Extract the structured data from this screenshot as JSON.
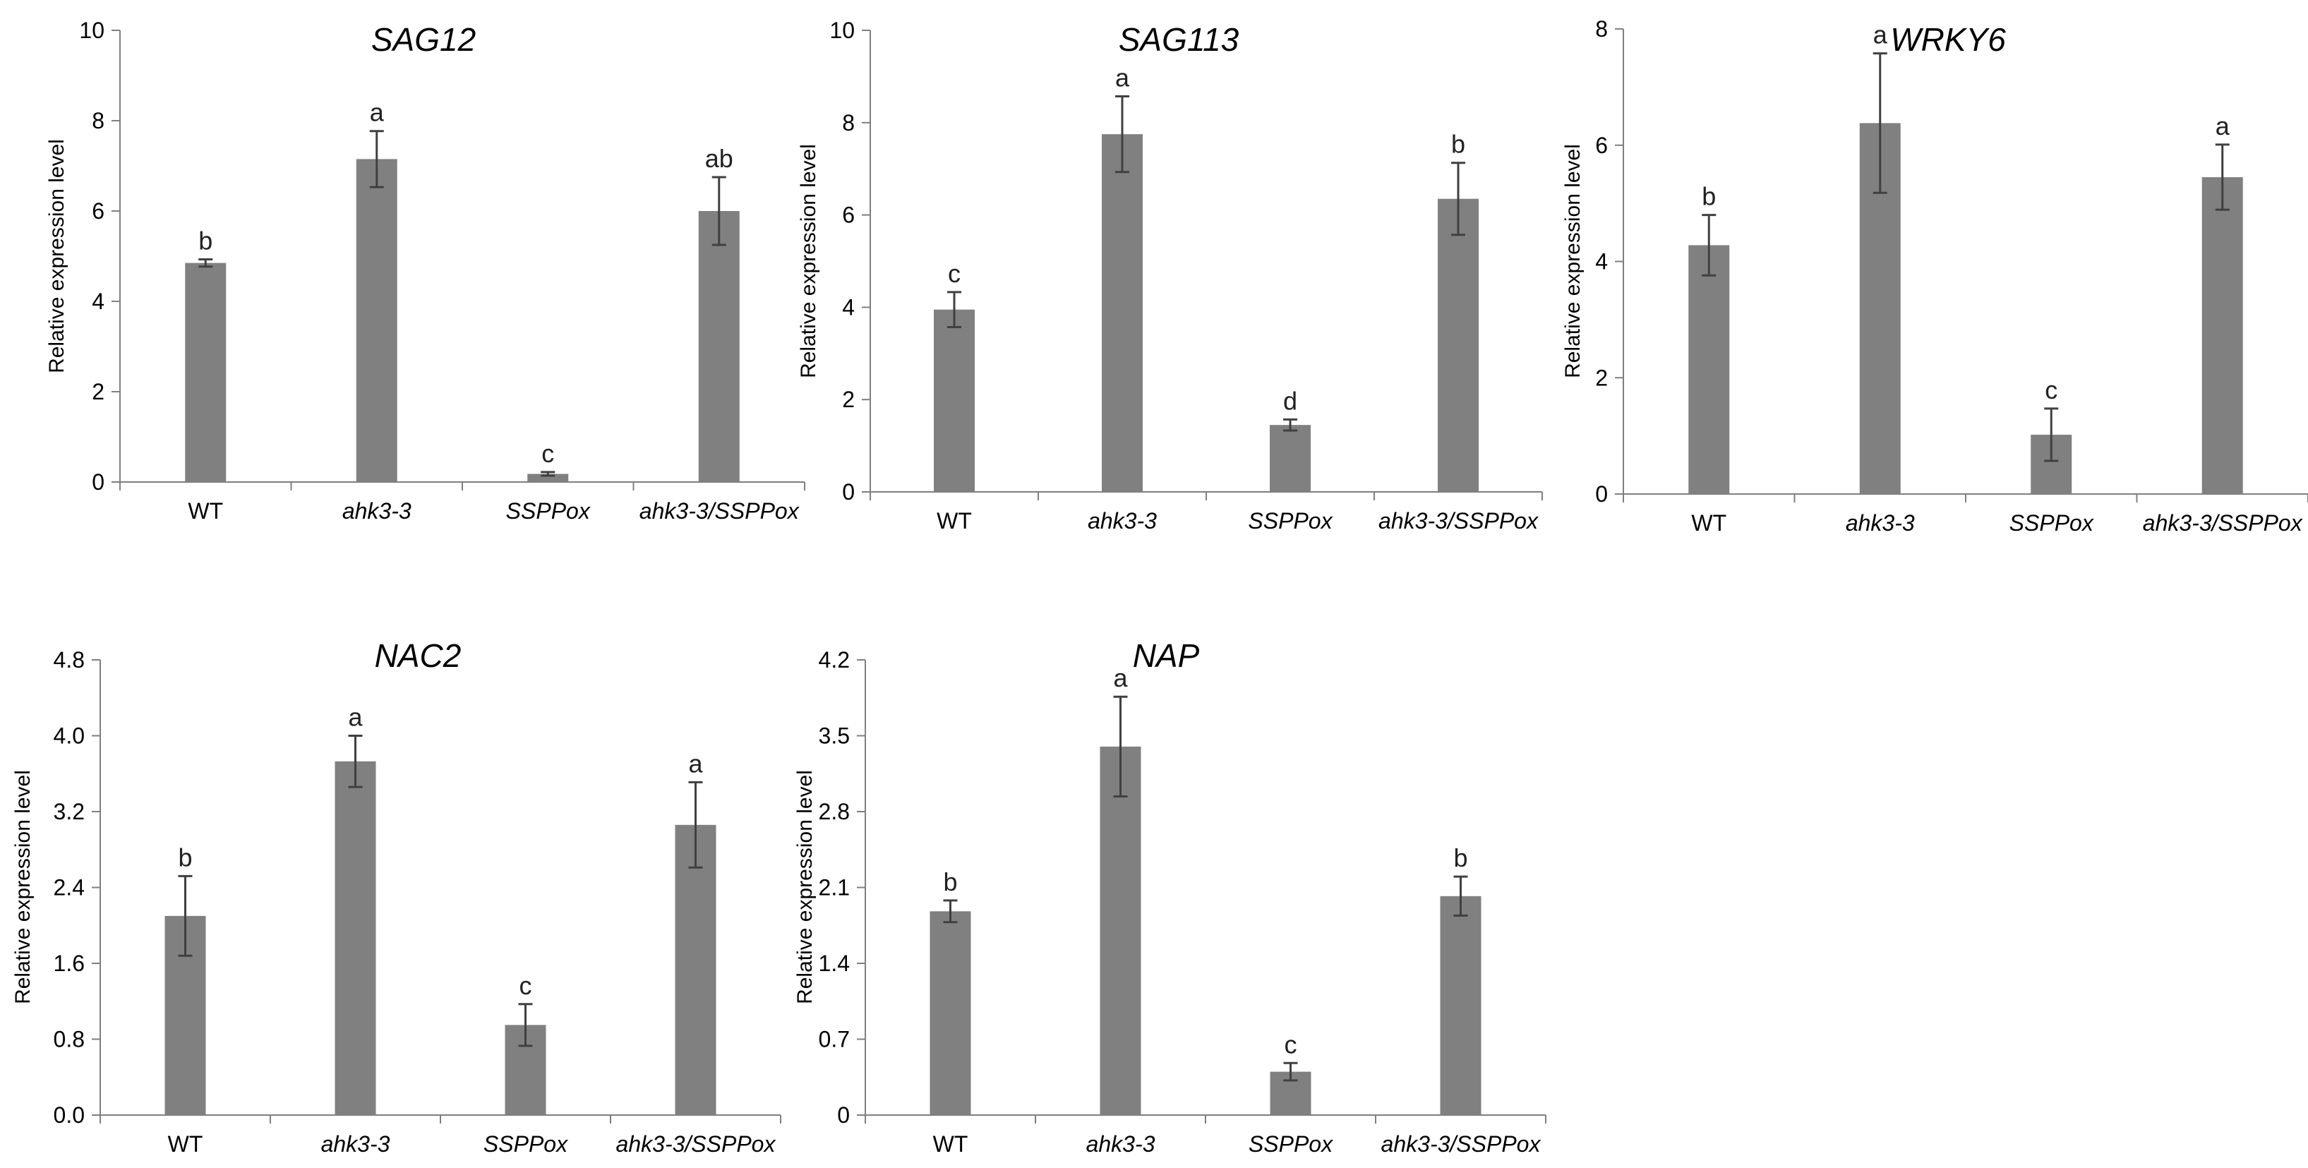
{
  "chart_data": [
    {
      "type": "bar",
      "title": "SAG12",
      "ylabel": "Relative expression level",
      "xlabel": "",
      "categories": [
        "WT",
        "ahk3-3",
        "SSPPox",
        "ahk3-3/SSPPox"
      ],
      "category_italic": [
        false,
        true,
        true,
        true
      ],
      "values": [
        4.85,
        7.15,
        0.18,
        6.0
      ],
      "errors": [
        0.08,
        0.62,
        0.04,
        0.75
      ],
      "significance": [
        "b",
        "a",
        "c",
        "ab"
      ],
      "ylim": [
        0,
        10
      ],
      "yticks": [
        0,
        2,
        4,
        6,
        8,
        10
      ],
      "ytick_labels": [
        "0",
        "2",
        "4",
        "6",
        "8",
        "10"
      ]
    },
    {
      "type": "bar",
      "title": "SAG113",
      "ylabel": "Relative expression level",
      "xlabel": "",
      "categories": [
        "WT",
        "ahk3-3",
        "SSPPox",
        "ahk3-3/SSPPox"
      ],
      "category_italic": [
        false,
        true,
        true,
        true
      ],
      "values": [
        3.95,
        7.75,
        1.45,
        6.35
      ],
      "errors": [
        0.38,
        0.82,
        0.12,
        0.78
      ],
      "significance": [
        "c",
        "a",
        "d",
        "b"
      ],
      "ylim": [
        0,
        10
      ],
      "yticks": [
        0,
        2,
        4,
        6,
        8,
        10
      ],
      "ytick_labels": [
        "0",
        "2",
        "4",
        "6",
        "8",
        "10"
      ]
    },
    {
      "type": "bar",
      "title": "WRKY6",
      "ylabel": "Relative expression level",
      "xlabel": "",
      "categories": [
        "WT",
        "ahk3-3",
        "SSPPox",
        "ahk3-3/SSPPox"
      ],
      "category_italic": [
        false,
        true,
        true,
        true
      ],
      "values": [
        4.28,
        6.38,
        1.02,
        5.45
      ],
      "errors": [
        0.52,
        1.2,
        0.45,
        0.56
      ],
      "significance": [
        "b",
        "a",
        "c",
        "a"
      ],
      "ylim": [
        0,
        8
      ],
      "yticks": [
        0,
        2,
        4,
        6,
        8
      ],
      "ytick_labels": [
        "0",
        "2",
        "4",
        "6",
        "8"
      ]
    },
    {
      "type": "bar",
      "title": "NAC2",
      "ylabel": "Relative expression level",
      "xlabel": "",
      "categories": [
        "WT",
        "ahk3-3",
        "SSPPox",
        "ahk3-3/SSPPox"
      ],
      "category_italic": [
        false,
        true,
        true,
        true
      ],
      "values": [
        2.1,
        3.73,
        0.95,
        3.06
      ],
      "errors": [
        0.42,
        0.27,
        0.22,
        0.45
      ],
      "significance": [
        "b",
        "a",
        "c",
        "a"
      ],
      "ylim": [
        0,
        4.8
      ],
      "yticks": [
        0,
        0.8,
        1.6,
        2.4,
        3.2,
        4.0,
        4.8
      ],
      "ytick_labels": [
        "0.0",
        "0.8",
        "1.6",
        "2.4",
        "3.2",
        "4.0",
        "4.8"
      ]
    },
    {
      "type": "bar",
      "title": "NAP",
      "ylabel": "Relative expression level",
      "xlabel": "",
      "categories": [
        "WT",
        "ahk3-3",
        "SSPPox",
        "ahk3-3/SSPPox"
      ],
      "category_italic": [
        false,
        true,
        true,
        true
      ],
      "values": [
        1.88,
        3.4,
        0.4,
        2.02
      ],
      "errors": [
        0.1,
        0.46,
        0.08,
        0.18
      ],
      "significance": [
        "b",
        "a",
        "c",
        "b"
      ],
      "ylim": [
        0,
        4.2
      ],
      "yticks": [
        0,
        0.7,
        1.4,
        2.1,
        2.8,
        3.5,
        4.2
      ],
      "ytick_labels": [
        "0",
        "0.7",
        "1.4",
        "2.1",
        "2.8",
        "3.5",
        "4.2"
      ]
    }
  ],
  "colors": {
    "bar": "#808080",
    "axis": "#7f7f7f",
    "error_bar": "#404040"
  }
}
